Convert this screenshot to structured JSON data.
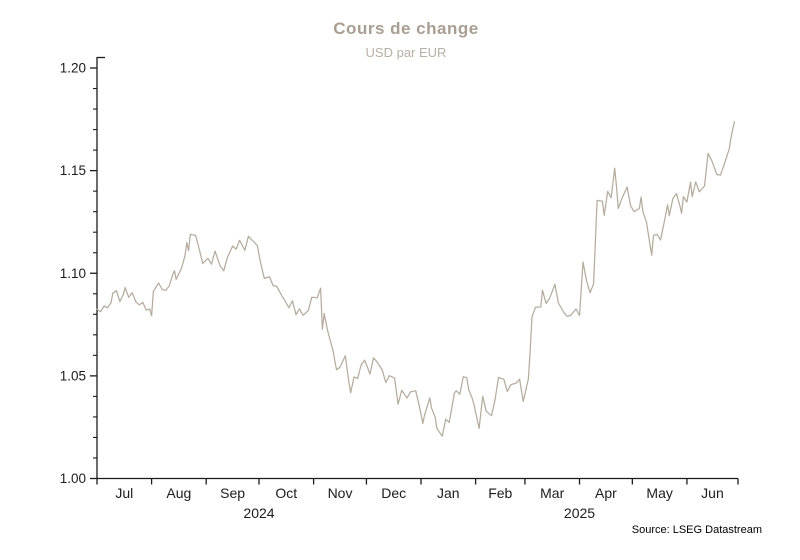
{
  "header": {
    "title": "Cours de change",
    "subtitle": "USD par EUR"
  },
  "footer": {
    "source": "Source: LSEG Datastream"
  },
  "colors": {
    "background": "#ffffff",
    "title": "#a89e91",
    "subtitle": "#b9b0a3",
    "axis": "#1c1c1c",
    "line": "#b6ac9e",
    "source_text": "#000000"
  },
  "chart_data": {
    "type": "line",
    "title": "Cours de change",
    "subtitle": "USD par EUR",
    "xlabel": "",
    "ylabel": "USD par EUR",
    "grid": false,
    "legend_position": "none",
    "ylim": [
      1.0,
      1.2
    ],
    "y_minor_step": 0.01,
    "y_ticks": [
      {
        "value": 1.0,
        "label": "1.00"
      },
      {
        "value": 1.05,
        "label": "1.05"
      },
      {
        "value": 1.1,
        "label": "1.10"
      },
      {
        "value": 1.15,
        "label": "1.15"
      },
      {
        "value": 1.2,
        "label": "1.20"
      }
    ],
    "x_domain_days": [
      0,
      364
    ],
    "x_axis": {
      "months": [
        {
          "label": "Jul",
          "start_day": 0,
          "end_day": 31
        },
        {
          "label": "Aug",
          "start_day": 31,
          "end_day": 62
        },
        {
          "label": "Sep",
          "start_day": 62,
          "end_day": 92
        },
        {
          "label": "Oct",
          "start_day": 92,
          "end_day": 123
        },
        {
          "label": "Nov",
          "start_day": 123,
          "end_day": 153
        },
        {
          "label": "Dec",
          "start_day": 153,
          "end_day": 184
        },
        {
          "label": "Jan",
          "start_day": 184,
          "end_day": 215
        },
        {
          "label": "Feb",
          "start_day": 215,
          "end_day": 243
        },
        {
          "label": "Mar",
          "start_day": 243,
          "end_day": 274
        },
        {
          "label": "Apr",
          "start_day": 274,
          "end_day": 304
        },
        {
          "label": "May",
          "start_day": 304,
          "end_day": 335
        },
        {
          "label": "Jun",
          "start_day": 335,
          "end_day": 364
        }
      ],
      "years": [
        {
          "label": "2024",
          "start_day": 0,
          "end_day": 184
        },
        {
          "label": "2025",
          "start_day": 184,
          "end_day": 364
        }
      ]
    },
    "series": [
      {
        "name": "USD par EUR",
        "points": [
          [
            0,
            1.0825
          ],
          [
            2,
            1.0812
          ],
          [
            4,
            1.0841
          ],
          [
            6,
            1.0832
          ],
          [
            8,
            1.0858
          ],
          [
            9,
            1.0903
          ],
          [
            11,
            1.0915
          ],
          [
            13,
            1.0862
          ],
          [
            15,
            1.0898
          ],
          [
            16,
            1.093
          ],
          [
            18,
            1.0883
          ],
          [
            20,
            1.0905
          ],
          [
            22,
            1.0862
          ],
          [
            24,
            1.0846
          ],
          [
            26,
            1.0858
          ],
          [
            28,
            1.082
          ],
          [
            30,
            1.0826
          ],
          [
            31,
            1.0792
          ],
          [
            32,
            1.0912
          ],
          [
            35,
            1.0952
          ],
          [
            37,
            1.0921
          ],
          [
            39,
            1.0917
          ],
          [
            41,
            1.0938
          ],
          [
            43,
            1.0993
          ],
          [
            44,
            1.1012
          ],
          [
            45,
            1.097
          ],
          [
            48,
            1.1025
          ],
          [
            50,
            1.1085
          ],
          [
            51,
            1.115
          ],
          [
            52,
            1.111
          ],
          [
            53,
            1.119
          ],
          [
            56,
            1.1184
          ],
          [
            58,
            1.112
          ],
          [
            60,
            1.1048
          ],
          [
            63,
            1.1073
          ],
          [
            65,
            1.1044
          ],
          [
            67,
            1.1108
          ],
          [
            70,
            1.1034
          ],
          [
            72,
            1.1012
          ],
          [
            74,
            1.1076
          ],
          [
            77,
            1.1133
          ],
          [
            79,
            1.1117
          ],
          [
            81,
            1.116
          ],
          [
            84,
            1.1112
          ],
          [
            86,
            1.118
          ],
          [
            88,
            1.1162
          ],
          [
            91,
            1.1135
          ],
          [
            93,
            1.1046
          ],
          [
            95,
            1.0975
          ],
          [
            98,
            1.0982
          ],
          [
            100,
            1.094
          ],
          [
            102,
            1.0937
          ],
          [
            105,
            1.089
          ],
          [
            107,
            1.0862
          ],
          [
            109,
            1.0832
          ],
          [
            111,
            1.0866
          ],
          [
            113,
            1.0798
          ],
          [
            115,
            1.0827
          ],
          [
            117,
            1.0795
          ],
          [
            120,
            1.0818
          ],
          [
            122,
            1.0884
          ],
          [
            125,
            1.088
          ],
          [
            127,
            1.0927
          ],
          [
            128,
            1.0727
          ],
          [
            129,
            1.0804
          ],
          [
            131,
            1.0718
          ],
          [
            134,
            1.0623
          ],
          [
            136,
            1.053
          ],
          [
            138,
            1.0542
          ],
          [
            141,
            1.0598
          ],
          [
            143,
            1.0473
          ],
          [
            144,
            1.0418
          ],
          [
            146,
            1.0495
          ],
          [
            148,
            1.0487
          ],
          [
            150,
            1.0553
          ],
          [
            152,
            1.0577
          ],
          [
            155,
            1.0509
          ],
          [
            157,
            1.0588
          ],
          [
            159,
            1.0568
          ],
          [
            162,
            1.0528
          ],
          [
            164,
            1.0467
          ],
          [
            166,
            1.0501
          ],
          [
            169,
            1.0489
          ],
          [
            171,
            1.0362
          ],
          [
            173,
            1.043
          ],
          [
            176,
            1.0392
          ],
          [
            178,
            1.0422
          ],
          [
            181,
            1.0428
          ],
          [
            183,
            1.0354
          ],
          [
            185,
            1.0268
          ],
          [
            186,
            1.0308
          ],
          [
            189,
            1.0393
          ],
          [
            190,
            1.0342
          ],
          [
            192,
            1.03
          ],
          [
            193,
            1.0244
          ],
          [
            196,
            1.0206
          ],
          [
            198,
            1.0289
          ],
          [
            200,
            1.0273
          ],
          [
            203,
            1.0417
          ],
          [
            204,
            1.0428
          ],
          [
            206,
            1.041
          ],
          [
            208,
            1.0496
          ],
          [
            210,
            1.0491
          ],
          [
            211,
            1.0434
          ],
          [
            213,
            1.0392
          ],
          [
            214,
            1.0362
          ],
          [
            217,
            1.0244
          ],
          [
            219,
            1.0401
          ],
          [
            221,
            1.0328
          ],
          [
            224,
            1.0306
          ],
          [
            226,
            1.0383
          ],
          [
            228,
            1.0492
          ],
          [
            231,
            1.0484
          ],
          [
            233,
            1.0424
          ],
          [
            235,
            1.0457
          ],
          [
            238,
            1.0465
          ],
          [
            240,
            1.0484
          ],
          [
            242,
            1.0375
          ],
          [
            245,
            1.0486
          ],
          [
            246,
            1.0625
          ],
          [
            247,
            1.0789
          ],
          [
            249,
            1.0834
          ],
          [
            252,
            1.0836
          ],
          [
            253,
            1.0917
          ],
          [
            255,
            1.0853
          ],
          [
            257,
            1.0878
          ],
          [
            260,
            1.0946
          ],
          [
            262,
            1.0855
          ],
          [
            265,
            1.081
          ],
          [
            267,
            1.079
          ],
          [
            269,
            1.0795
          ],
          [
            272,
            1.0826
          ],
          [
            274,
            1.0794
          ],
          [
            276,
            1.1055
          ],
          [
            278,
            1.0962
          ],
          [
            280,
            1.0905
          ],
          [
            282,
            1.0949
          ],
          [
            284,
            1.1355
          ],
          [
            287,
            1.1351
          ],
          [
            288,
            1.1282
          ],
          [
            290,
            1.1399
          ],
          [
            292,
            1.1368
          ],
          [
            294,
            1.1512
          ],
          [
            295,
            1.1421
          ],
          [
            296,
            1.1316
          ],
          [
            298,
            1.1363
          ],
          [
            301,
            1.142
          ],
          [
            303,
            1.1329
          ],
          [
            305,
            1.13
          ],
          [
            308,
            1.1316
          ],
          [
            309,
            1.1371
          ],
          [
            310,
            1.13
          ],
          [
            312,
            1.125
          ],
          [
            315,
            1.1088
          ],
          [
            316,
            1.1185
          ],
          [
            318,
            1.119
          ],
          [
            320,
            1.1162
          ],
          [
            322,
            1.1244
          ],
          [
            324,
            1.1333
          ],
          [
            325,
            1.128
          ],
          [
            327,
            1.1363
          ],
          [
            329,
            1.1388
          ],
          [
            331,
            1.1328
          ],
          [
            332,
            1.1292
          ],
          [
            333,
            1.1373
          ],
          [
            335,
            1.1347
          ],
          [
            337,
            1.1444
          ],
          [
            338,
            1.1373
          ],
          [
            340,
            1.1445
          ],
          [
            342,
            1.1397
          ],
          [
            345,
            1.1425
          ],
          [
            347,
            1.1584
          ],
          [
            349,
            1.1551
          ],
          [
            352,
            1.1481
          ],
          [
            354,
            1.1478
          ],
          [
            356,
            1.1526
          ],
          [
            359,
            1.1605
          ],
          [
            360,
            1.166
          ],
          [
            361,
            1.1702
          ],
          [
            362,
            1.1738
          ]
        ]
      }
    ]
  }
}
